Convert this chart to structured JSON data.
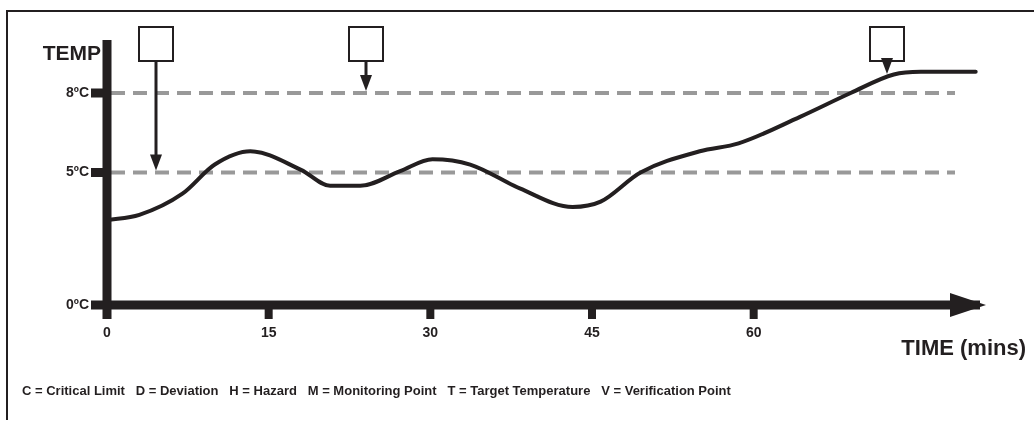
{
  "chart_data": {
    "type": "line",
    "xlabel": "TIME (mins)",
    "ylabel": "TEMP",
    "x": [
      0,
      3,
      7,
      10,
      13.3,
      18,
      20.7,
      23.5,
      27.2,
      30.2,
      33.7,
      38.3,
      43.2,
      45.8,
      49.5,
      55,
      58.6,
      64.3,
      69,
      73,
      75.5,
      80.6
    ],
    "series": [
      {
        "color": "#231f20",
        "values": [
          3.2,
          3.4,
          4.2,
          5.3,
          5.8,
          5.1,
          4.5,
          4.5,
          5.05,
          5.5,
          5.3,
          4.4,
          3.7,
          3.9,
          5.0,
          5.8,
          6.1,
          7.1,
          8.0,
          8.7,
          8.8,
          8.8
        ]
      }
    ],
    "xlim": [
      0,
      81
    ],
    "xticks": [
      0,
      15,
      30,
      45,
      60
    ],
    "ylim": [
      0,
      10
    ],
    "yticks": [
      {
        "value": 0,
        "label": "0ºC"
      },
      {
        "value": 5,
        "label": "5ºC"
      },
      {
        "value": 8,
        "label": "8ºC"
      }
    ],
    "ref_lines": [
      {
        "axis": "y",
        "value": 5,
        "color": "#999999",
        "line_style": "dashed"
      },
      {
        "axis": "y",
        "value": 8,
        "color": "#999999",
        "line_style": "dashed"
      }
    ],
    "annotations": [
      "C = Critical Limit   D = Deviation   H = Hazard   M = Monitoring Point   T = Target Temperature   V = Verification Point"
    ],
    "grid": false,
    "legend": false,
    "marker": "none",
    "line_style": "solid"
  }
}
